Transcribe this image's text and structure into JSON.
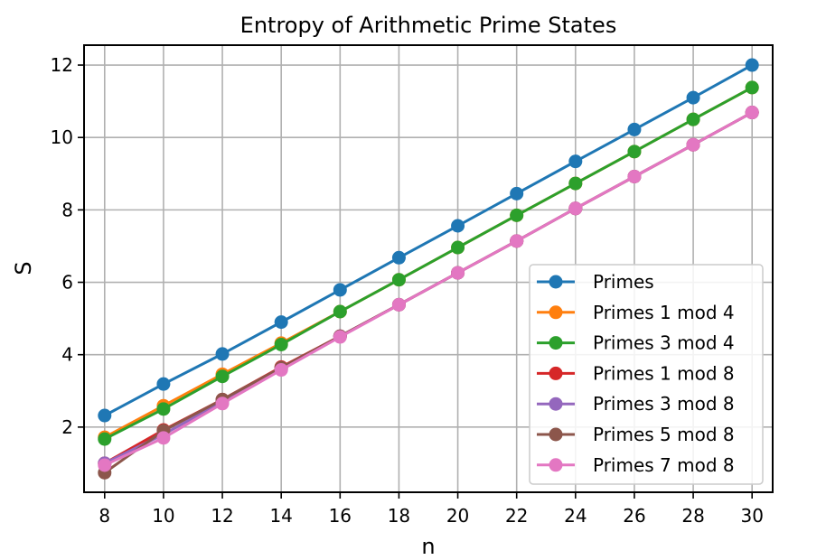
{
  "chart_data": {
    "type": "line",
    "title": "Entropy of Arithmetic Prime States",
    "xlabel": "n",
    "ylabel": "S",
    "xlim": [
      7.3,
      30.7
    ],
    "ylim": [
      0.2,
      12.55
    ],
    "xticks": [
      8,
      10,
      12,
      14,
      16,
      18,
      20,
      22,
      24,
      26,
      28,
      30
    ],
    "yticks": [
      2,
      4,
      6,
      8,
      10,
      12
    ],
    "grid": true,
    "legend_position": "lower-right",
    "x": [
      8,
      10,
      12,
      14,
      16,
      18,
      20,
      22,
      24,
      26,
      28,
      30
    ],
    "series": [
      {
        "name": "Primes",
        "color": "#1f77b4",
        "marker": "circle",
        "values": [
          2.32,
          3.19,
          4.02,
          4.9,
          5.79,
          6.68,
          7.56,
          8.45,
          9.34,
          10.22,
          11.1,
          12.0
        ]
      },
      {
        "name": "Primes 1 mod 4",
        "color": "#ff7f0e",
        "marker": "circle",
        "values": [
          1.72,
          2.59,
          3.46,
          4.32,
          5.19,
          6.07,
          6.96,
          7.85,
          8.73,
          9.61,
          10.5,
          11.38
        ]
      },
      {
        "name": "Primes 3 mod 4",
        "color": "#2ca02c",
        "marker": "circle",
        "values": [
          1.67,
          2.5,
          3.4,
          4.28,
          5.19,
          6.07,
          6.96,
          7.85,
          8.73,
          9.61,
          10.5,
          11.38
        ]
      },
      {
        "name": "Primes 1 mod 8",
        "color": "#d62728",
        "marker": "circle",
        "values": [
          1.0,
          1.92,
          2.76,
          3.66,
          4.51,
          5.38,
          6.26,
          7.14,
          8.04,
          8.92,
          9.8,
          10.69
        ]
      },
      {
        "name": "Primes 3 mod 8",
        "color": "#9467bd",
        "marker": "circle",
        "values": [
          1.0,
          1.8,
          2.7,
          3.6,
          4.51,
          5.38,
          6.26,
          7.14,
          8.04,
          8.92,
          9.8,
          10.69
        ]
      },
      {
        "name": "Primes 5 mod 8",
        "color": "#8c564b",
        "marker": "circle",
        "values": [
          0.74,
          1.9,
          2.76,
          3.64,
          4.51,
          5.38,
          6.26,
          7.14,
          8.04,
          8.92,
          9.8,
          10.69
        ]
      },
      {
        "name": "Primes 7 mod 8",
        "color": "#e377c2",
        "marker": "circle",
        "values": [
          0.95,
          1.7,
          2.65,
          3.58,
          4.49,
          5.38,
          6.26,
          7.14,
          8.04,
          8.92,
          9.8,
          10.69
        ]
      }
    ]
  }
}
